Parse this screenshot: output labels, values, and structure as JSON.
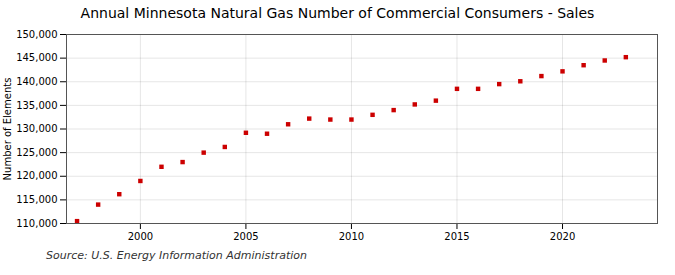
{
  "chart_data": {
    "type": "scatter",
    "title": "Annual Minnesota Natural Gas Number of Commercial Consumers - Sales",
    "ylabel": "Number of Elements",
    "source": "Source: U.S. Energy Information Administration",
    "x": [
      1997,
      1998,
      1999,
      2000,
      2001,
      2002,
      2003,
      2004,
      2005,
      2006,
      2007,
      2008,
      2009,
      2010,
      2011,
      2012,
      2013,
      2014,
      2015,
      2016,
      2017,
      2018,
      2019,
      2020,
      2021,
      2022,
      2023
    ],
    "values": [
      110500,
      114000,
      116200,
      119000,
      122000,
      123000,
      125000,
      126200,
      129200,
      129000,
      131000,
      132200,
      132000,
      132000,
      133000,
      134000,
      135200,
      136000,
      138500,
      138500,
      139500,
      140100,
      141200,
      142200,
      143500,
      144500,
      145200
    ],
    "color": "#cc0000",
    "marker": "square",
    "xlim": [
      1996.5,
      2024.5
    ],
    "xticks": [
      2000,
      2005,
      2010,
      2015,
      2020
    ],
    "ylim": [
      110000,
      150000
    ],
    "yticks": [
      {
        "value": 110000,
        "label": "110,000"
      },
      {
        "value": 115000,
        "label": "115,000"
      },
      {
        "value": 120000,
        "label": "120,000"
      },
      {
        "value": 125000,
        "label": "125,000"
      },
      {
        "value": 130000,
        "label": "130,000"
      },
      {
        "value": 135000,
        "label": "135,000"
      },
      {
        "value": 140000,
        "label": "140,000"
      },
      {
        "value": 145000,
        "label": "145,000"
      },
      {
        "value": 150000,
        "label": "150,000"
      }
    ],
    "grid": true
  }
}
